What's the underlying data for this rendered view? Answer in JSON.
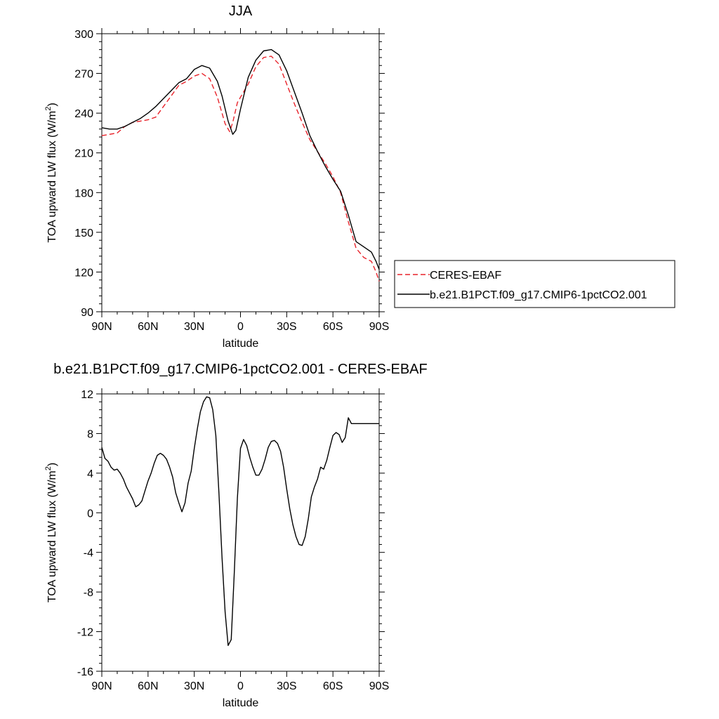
{
  "chart_data": [
    {
      "type": "line",
      "title": "JJA",
      "xlabel": "latitude",
      "ylabel": "TOA upward LW flux (W/m",
      "ylabel_sup": "2",
      "ylabel_close": ")",
      "xlim": [
        90,
        -90
      ],
      "ylim": [
        90,
        300
      ],
      "xticks": [
        {
          "v": 90,
          "label": "90N"
        },
        {
          "v": 60,
          "label": "60N"
        },
        {
          "v": 30,
          "label": "30N"
        },
        {
          "v": 0,
          "label": "0"
        },
        {
          "v": -30,
          "label": "30S"
        },
        {
          "v": -60,
          "label": "60S"
        },
        {
          "v": -90,
          "label": "90S"
        }
      ],
      "yticks": [
        90,
        120,
        150,
        180,
        210,
        240,
        270,
        300
      ],
      "legend_position": "right",
      "series": [
        {
          "name": "CERES-EBAF",
          "color": "#e8222a",
          "dash": true,
          "x": [
            90,
            85,
            80,
            75,
            70,
            65,
            60,
            55,
            50,
            45,
            40,
            35,
            30,
            25,
            20,
            15,
            10,
            7,
            5,
            2,
            0,
            -5,
            -10,
            -15,
            -20,
            -25,
            -30,
            -35,
            -40,
            -45,
            -50,
            -55,
            -60,
            -65,
            -70,
            -75,
            -80,
            -85,
            -88,
            -90
          ],
          "y": [
            223,
            224,
            225,
            230,
            233,
            234,
            235,
            237,
            245,
            253,
            261,
            264,
            268,
            270,
            266,
            252,
            232,
            226,
            233,
            248,
            252,
            262,
            275,
            282,
            283,
            277,
            262,
            247,
            233,
            220,
            211,
            202,
            192,
            180,
            158,
            138,
            131,
            128,
            120,
            113
          ]
        },
        {
          "name": "b.e21.B1PCT.f09_g17.CMIP6-1pctCO2.001",
          "color": "#000000",
          "dash": false,
          "x": [
            90,
            85,
            80,
            75,
            70,
            65,
            60,
            55,
            50,
            45,
            40,
            35,
            30,
            25,
            20,
            15,
            12,
            8,
            5,
            3,
            0,
            -5,
            -10,
            -15,
            -20,
            -25,
            -30,
            -35,
            -40,
            -45,
            -50,
            -55,
            -60,
            -65,
            -70,
            -75,
            -80,
            -85,
            -88,
            -90
          ],
          "y": [
            229,
            228,
            228,
            230,
            233,
            236,
            240,
            245,
            251,
            257,
            263,
            266,
            273,
            276,
            274,
            264,
            253,
            234,
            224,
            227,
            243,
            267,
            280,
            287,
            288,
            284,
            272,
            256,
            240,
            223,
            211,
            200,
            190,
            181,
            163,
            143,
            139,
            135,
            128,
            122
          ]
        }
      ]
    },
    {
      "type": "line",
      "title": "b.e21.B1PCT.f09_g17.CMIP6-1pctCO2.001 - CERES-EBAF",
      "xlabel": "latitude",
      "ylabel": "TOA upward LW flux (W/m",
      "ylabel_sup": "2",
      "ylabel_close": ")",
      "xlim": [
        90,
        -90
      ],
      "ylim": [
        -16,
        12
      ],
      "xticks": [
        {
          "v": 90,
          "label": "90N"
        },
        {
          "v": 60,
          "label": "60N"
        },
        {
          "v": 30,
          "label": "30N"
        },
        {
          "v": 0,
          "label": "0"
        },
        {
          "v": -30,
          "label": "30S"
        },
        {
          "v": -60,
          "label": "60S"
        },
        {
          "v": -90,
          "label": "90S"
        }
      ],
      "yticks": [
        -16,
        -12,
        -8,
        -4,
        0,
        4,
        8,
        12
      ],
      "series": [
        {
          "name": "",
          "color": "#000000",
          "dash": false,
          "x": [
            90,
            88,
            86,
            84,
            82,
            80,
            78,
            76,
            74,
            72,
            70,
            68,
            66,
            64,
            62,
            60,
            58,
            56,
            54,
            52,
            50,
            48,
            46,
            44,
            42,
            40,
            38,
            36,
            34,
            32,
            30,
            28,
            26,
            24,
            22,
            20,
            18,
            16,
            14,
            12,
            10,
            8,
            6,
            4,
            2,
            0,
            -2,
            -4,
            -6,
            -8,
            -10,
            -12,
            -14,
            -16,
            -18,
            -20,
            -22,
            -24,
            -26,
            -28,
            -30,
            -32,
            -34,
            -36,
            -38,
            -40,
            -42,
            -44,
            -46,
            -48,
            -50,
            -52,
            -54,
            -56,
            -58,
            -60,
            -62,
            -64,
            -66,
            -68,
            -70,
            -72,
            -74,
            -76,
            -78,
            -80,
            -82,
            -84,
            -86,
            -88,
            -90
          ],
          "y": [
            6.6,
            5.5,
            5.2,
            4.6,
            4.3,
            4.4,
            4.0,
            3.4,
            2.6,
            2.0,
            1.4,
            0.6,
            0.8,
            1.2,
            2.2,
            3.2,
            4.0,
            5.0,
            5.8,
            6.0,
            5.8,
            5.4,
            4.6,
            3.6,
            2.0,
            1.0,
            0.1,
            1.0,
            3.0,
            4.2,
            6.5,
            8.5,
            10.2,
            11.2,
            11.7,
            11.6,
            10.4,
            7.8,
            2.0,
            -4.5,
            -10.0,
            -13.4,
            -12.8,
            -6.0,
            1.5,
            6.5,
            7.4,
            6.8,
            5.6,
            4.6,
            3.8,
            3.8,
            4.4,
            5.4,
            6.6,
            7.2,
            7.3,
            7.0,
            6.2,
            4.6,
            2.4,
            0.4,
            -1.2,
            -2.4,
            -3.2,
            -3.3,
            -2.4,
            -0.6,
            1.6,
            2.6,
            3.4,
            4.6,
            4.4,
            5.3,
            6.6,
            7.8,
            8.1,
            7.9,
            7.1,
            7.6,
            9.6,
            9.0,
            9.0,
            9.0,
            9.0,
            9.0,
            9.0,
            9.0,
            9.0,
            9.0,
            9.0
          ]
        }
      ]
    }
  ]
}
